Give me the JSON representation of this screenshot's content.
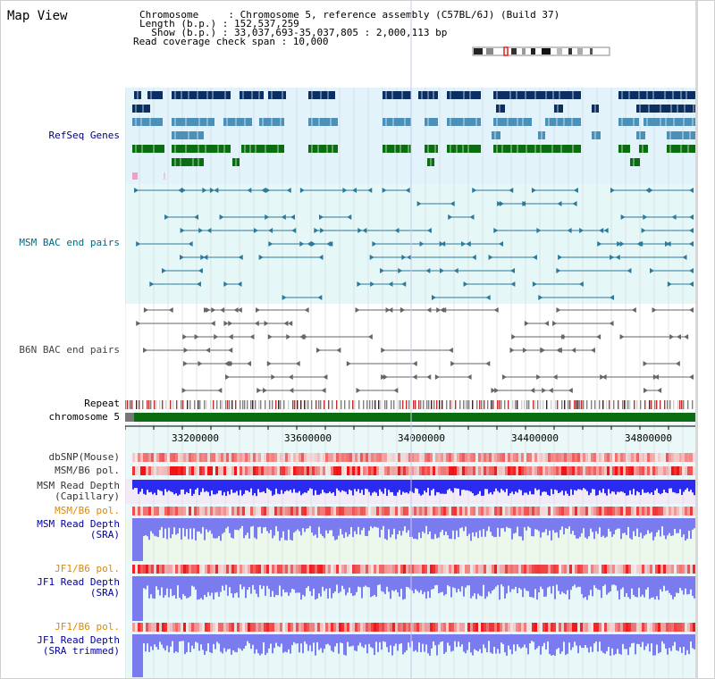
{
  "title": "Map View",
  "header": {
    "chromosome_line": "Chromosome     : Chromosome 5, reference assembly (C57BL/6J) (Build 37)",
    "length_line": "Length (b.p.) : 152,537,259",
    "show_line": "  Show (b.p.) : 33,037,693-35,037,805 : 2,000,113 bp",
    "coverage_line": "Read coverage check span : 10,000"
  },
  "tracks": {
    "refseq": "RefSeq Genes",
    "msm_bac": "MSM BAC end pairs",
    "b6n_bac": "B6N BAC end pairs",
    "repeat": "Repeat",
    "chromosome": "chromosome 5",
    "dbsnp": "dbSNP(Mouse)",
    "msm_b6_pol": "MSM/B6 pol.",
    "msm_depth_cap_1": "MSM Read Depth",
    "msm_depth_cap_2": "(Capillary)",
    "msm_b6_pol_2": "MSM/B6 pol.",
    "msm_depth_sra_1": "MSM Read Depth",
    "msm_depth_sra_2": "(SRA)",
    "jf1_b6_pol": "JF1/B6 pol.",
    "jf1_depth_sra_1": "JF1 Read Depth",
    "jf1_depth_sra_2": "(SRA)",
    "jf1_b6_pol_2": "JF1/B6 pol.",
    "jf1_depth_trim_1": "JF1 Read Depth",
    "jf1_depth_trim_2": "(SRA trimmed)"
  },
  "axis": {
    "ticks": [
      "33200000",
      "33600000",
      "34000000",
      "34400000",
      "34800000"
    ]
  },
  "colors": {
    "refseq_navy": "#0c2f63",
    "refseq_blue": "#4a90b8",
    "refseq_green": "#0a6e10",
    "bac_teal": "#2a7a9c",
    "chromosome_green": "#0a6e10",
    "depth_blue": "#2a2af0",
    "depth_light": "#7b7bf0",
    "pol_red": "#e02020"
  }
}
